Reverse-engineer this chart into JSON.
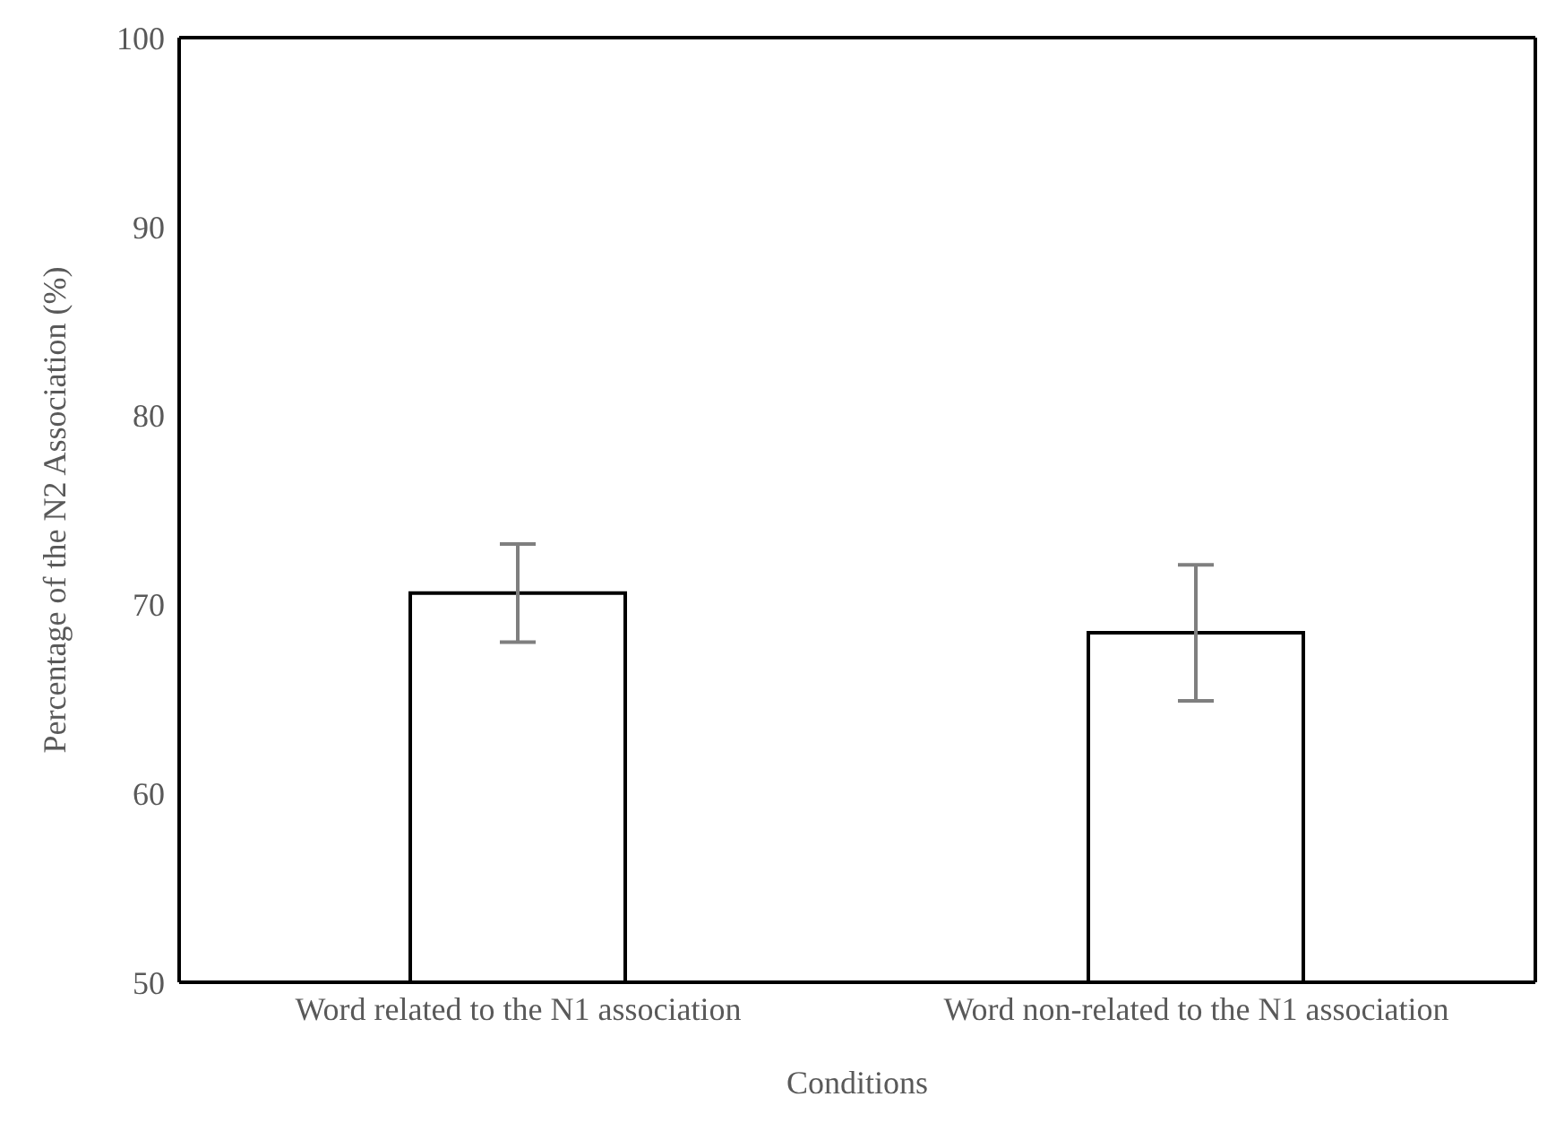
{
  "chart_data": {
    "type": "bar",
    "xlabel": "Conditions",
    "ylabel": "Percentage of the N2 Association (%)",
    "categories": [
      "Word related to the N1 association",
      "Word non-related to the N1 association"
    ],
    "values": [
      70.6,
      68.5
    ],
    "errors": [
      2.6,
      3.6
    ],
    "color": "#ffffff",
    "ylim": [
      50,
      100
    ],
    "yticks": [
      50,
      60,
      70,
      80,
      90,
      100
    ],
    "grid": false,
    "legend": false
  }
}
